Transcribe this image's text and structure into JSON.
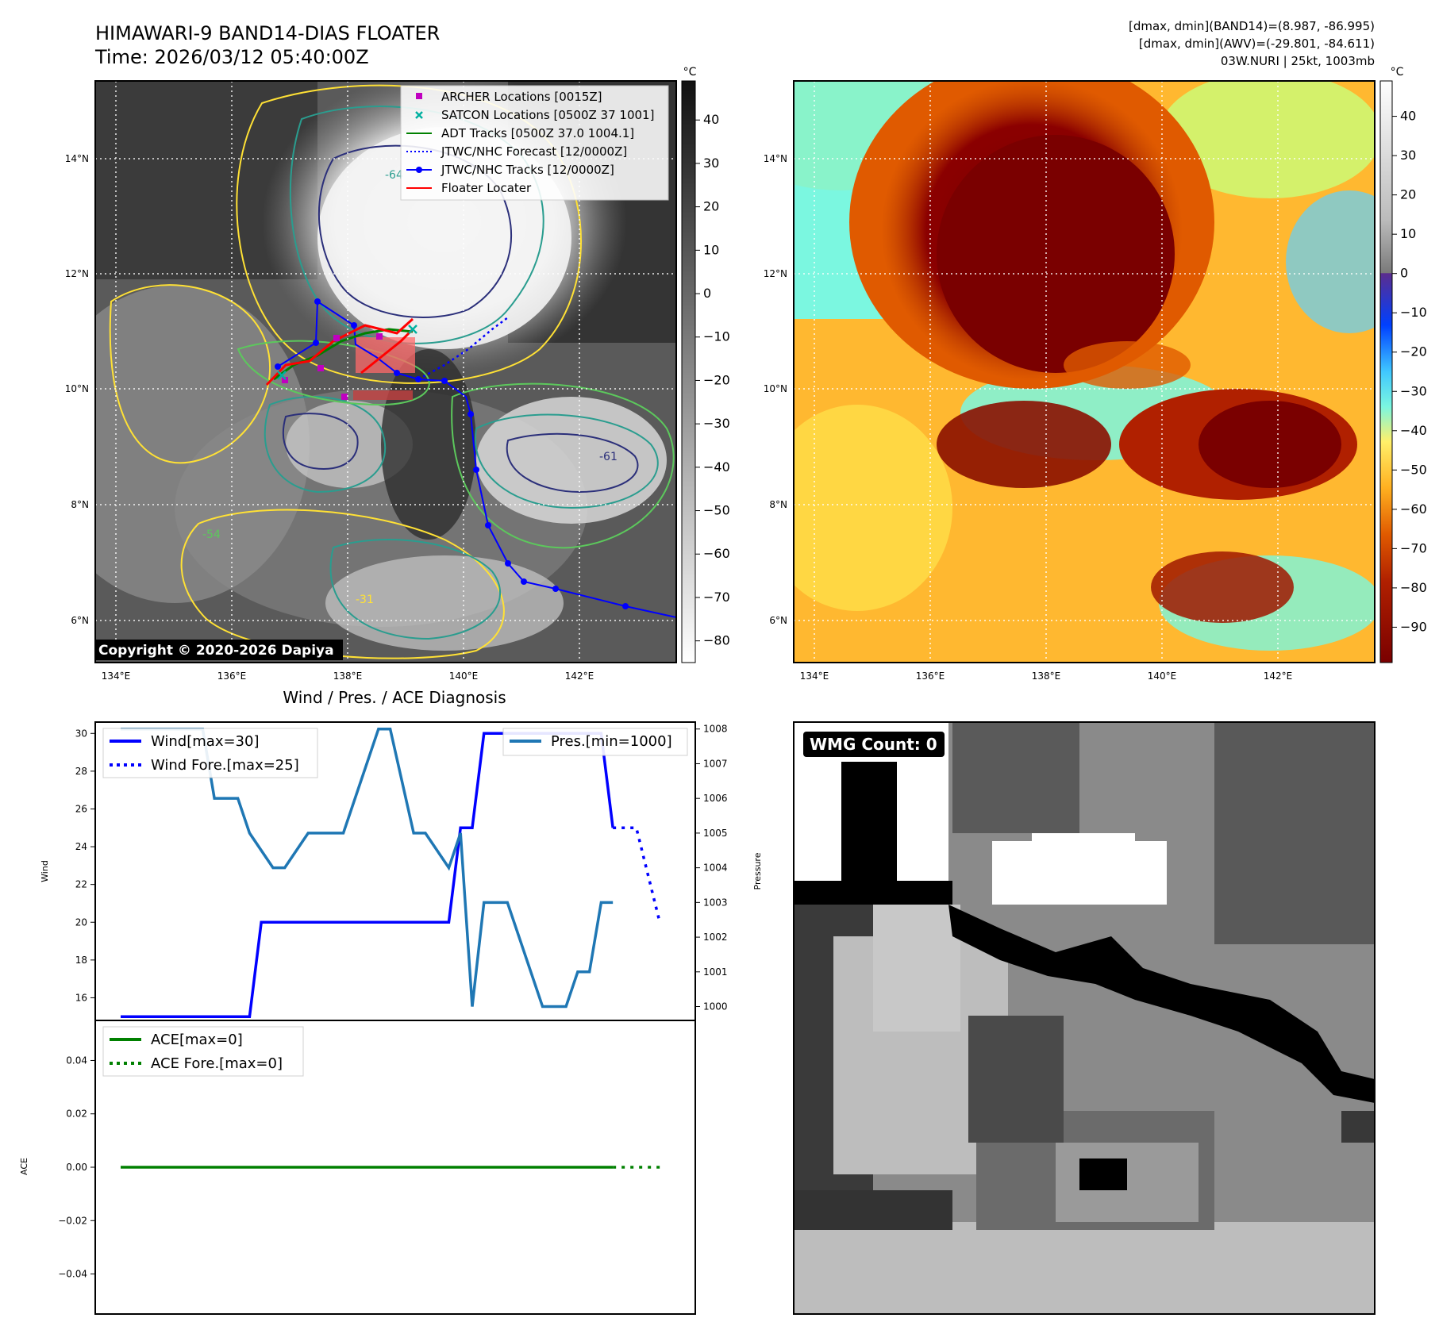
{
  "header": {
    "title": "HIMAWARI-9 BAND14-DIAS FLOATER",
    "time": "Time: 2026/03/12 05:40:00Z",
    "stats_band14": "[dmax, dmin](BAND14)=(8.987, -86.995)",
    "stats_awv": "[dmax, dmin](AWV)=(-29.801, -84.611)",
    "storm": "03W.NURI | 25kt, 1003mb"
  },
  "colors": {
    "wind": "#0000ff",
    "pressure": "#1f77b4",
    "ace": "#008000",
    "archer": "#c000c0",
    "satcon": "#00b0a0",
    "adt": "#008000",
    "jtwc": "#0000ff",
    "floater": "#ff0000",
    "contour_yellow": "#ffe135",
    "contour_green": "#5cc85c",
    "contour_teal": "#2a9d8f",
    "contour_navy": "#2b2f7a"
  },
  "maps": {
    "lon_ticks": [
      "134°E",
      "136°E",
      "138°E",
      "140°E",
      "142°E"
    ],
    "lat_ticks": [
      "14°N",
      "12°N",
      "10°N",
      "8°N",
      "6°N"
    ],
    "copyright": "Copyright © 2020-2026 Dapiya",
    "gray_colorbar": {
      "unit": "°C",
      "ticks": [
        "40",
        "30",
        "20",
        "10",
        "0",
        "−10",
        "−20",
        "−30",
        "−40",
        "−50",
        "−60",
        "−70",
        "−80"
      ]
    },
    "color_colorbar": {
      "unit": "°C",
      "ticks": [
        "40",
        "30",
        "20",
        "10",
        "0",
        "−10",
        "−20",
        "−30",
        "−40",
        "−50",
        "−60",
        "−70",
        "−80",
        "−90"
      ]
    },
    "legend": [
      {
        "label": "ARCHER Locations [0015Z]",
        "marker": "square-purple"
      },
      {
        "label": "SATCON Locations [0500Z 37 1001]",
        "marker": "x-teal"
      },
      {
        "label": "ADT Tracks [0500Z 37.0 1004.1]",
        "marker": "line-green"
      },
      {
        "label": "JTWC/NHC Forecast [12/0000Z]",
        "marker": "dotted-blue"
      },
      {
        "label": "JTWC/NHC Tracks [12/0000Z]",
        "marker": "line-dot-blue"
      },
      {
        "label": "Floater Locater",
        "marker": "line-red"
      }
    ],
    "contour_labels": [
      "-64",
      "-64",
      "-54",
      "-54",
      "-61",
      "-61",
      "-31",
      "-31"
    ]
  },
  "chart_data": [
    {
      "type": "line",
      "title": "Wind / Pres. / ACE Diagnosis",
      "ylabel": "Wind",
      "ylabel_right": "Pressure",
      "ylim": [
        14.8,
        30.6
      ],
      "ylim_right": [
        999.6,
        1008.2
      ],
      "yticks": [
        16,
        18,
        20,
        22,
        24,
        26,
        28,
        30
      ],
      "yticks_right": [
        1000,
        1001,
        1002,
        1003,
        1004,
        1005,
        1006,
        1007,
        1008
      ],
      "x_range": [
        0,
        47
      ],
      "series": [
        {
          "name": "Wind[max=30]",
          "axis": "left",
          "style": "solid",
          "x": [
            0,
            11,
            12,
            28,
            29,
            30,
            31,
            41,
            42
          ],
          "values": [
            15,
            15,
            20,
            20,
            25,
            25,
            30,
            30,
            25
          ]
        },
        {
          "name": "Wind Fore.[max=25]",
          "axis": "left",
          "style": "dotted",
          "x": [
            42,
            44,
            46
          ],
          "values": [
            25,
            25,
            20
          ]
        },
        {
          "name": "Pres.[min=1000]",
          "axis": "right",
          "style": "solid",
          "x": [
            0,
            7,
            8,
            10,
            11,
            13,
            14,
            16,
            17,
            19,
            20,
            22,
            23,
            25,
            26,
            28,
            29,
            30,
            31,
            32,
            33,
            35,
            36,
            37,
            38,
            39,
            40,
            41,
            42
          ],
          "values": [
            1008,
            1008,
            1006,
            1006,
            1005,
            1004,
            1004,
            1005,
            1005,
            1005,
            1006,
            1008,
            1008,
            1005,
            1005,
            1004,
            1005,
            1000,
            1003,
            1003,
            1003,
            1001,
            1000,
            1000,
            1000,
            1001,
            1001,
            1003,
            1003
          ]
        }
      ]
    },
    {
      "type": "line",
      "ylabel": "ACE",
      "ylim": [
        -0.055,
        0.055
      ],
      "yticks": [
        0.04,
        0.02,
        0.0,
        -0.02,
        -0.04
      ],
      "ytick_labels": [
        "0.04",
        "0.02",
        "0.00",
        "−0.02",
        "−0.04"
      ],
      "x_range": [
        0,
        47
      ],
      "series": [
        {
          "name": "ACE[max=0]",
          "style": "solid",
          "x": [
            0,
            42
          ],
          "values": [
            0,
            0
          ]
        },
        {
          "name": "ACE Fore.[max=0]",
          "style": "dotted",
          "x": [
            42,
            46
          ],
          "values": [
            0,
            0
          ]
        }
      ]
    }
  ],
  "wmg_panel": {
    "label": "WMG Count: 0"
  }
}
